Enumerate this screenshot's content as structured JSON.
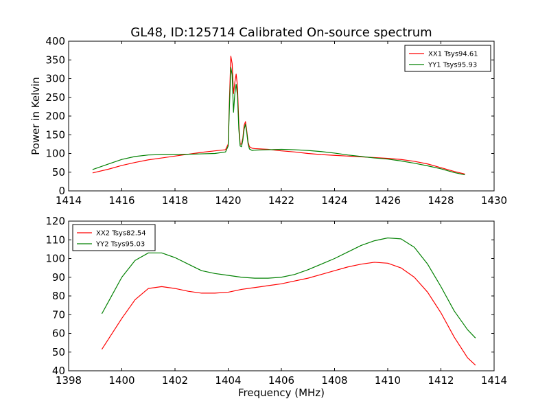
{
  "figure": {
    "title": "GL48, ID:125714 Calibrated On-source spectrum"
  },
  "chart_data": [
    {
      "type": "line",
      "panel": "top",
      "title": "GL48, ID:125714 Calibrated On-source spectrum",
      "xlabel": "",
      "ylabel": "Power in Kelvin",
      "xlim": [
        1414,
        1430
      ],
      "ylim": [
        0,
        400
      ],
      "xticks": [
        1414,
        1416,
        1418,
        1420,
        1422,
        1424,
        1426,
        1428,
        1430
      ],
      "yticks": [
        0,
        50,
        100,
        150,
        200,
        250,
        300,
        350,
        400
      ],
      "grid": false,
      "legend_position": "top-right",
      "series": [
        {
          "name": "XX1 Tsys94.61",
          "color": "#ff0000",
          "x": [
            1414.9,
            1415.5,
            1416.0,
            1416.5,
            1417.0,
            1417.5,
            1418.0,
            1418.5,
            1419.0,
            1419.5,
            1419.9,
            1420.0,
            1420.05,
            1420.1,
            1420.15,
            1420.2,
            1420.25,
            1420.3,
            1420.35,
            1420.4,
            1420.45,
            1420.5,
            1420.55,
            1420.6,
            1420.65,
            1420.7,
            1420.75,
            1420.8,
            1420.9,
            1421.0,
            1421.5,
            1422.0,
            1422.5,
            1423.0,
            1423.5,
            1424.0,
            1424.5,
            1425.0,
            1425.5,
            1426.0,
            1426.5,
            1427.0,
            1427.5,
            1428.0,
            1428.5,
            1428.9
          ],
          "y": [
            48,
            58,
            68,
            76,
            83,
            88,
            93,
            98,
            103,
            107,
            110,
            125,
            250,
            360,
            340,
            260,
            290,
            312,
            280,
            180,
            125,
            125,
            140,
            175,
            185,
            160,
            130,
            118,
            114,
            113,
            111,
            107,
            104,
            100,
            97,
            95,
            93,
            91,
            89,
            87,
            84,
            79,
            72,
            62,
            52,
            45
          ]
        },
        {
          "name": "YY1 Tsys95.93",
          "color": "#008000",
          "x": [
            1414.9,
            1415.5,
            1416.0,
            1416.5,
            1417.0,
            1417.5,
            1418.0,
            1418.5,
            1419.0,
            1419.5,
            1419.9,
            1420.0,
            1420.05,
            1420.1,
            1420.15,
            1420.2,
            1420.25,
            1420.3,
            1420.35,
            1420.4,
            1420.45,
            1420.5,
            1420.55,
            1420.6,
            1420.65,
            1420.7,
            1420.75,
            1420.8,
            1420.9,
            1421.0,
            1421.5,
            1422.0,
            1422.5,
            1423.0,
            1423.5,
            1424.0,
            1424.5,
            1425.0,
            1425.5,
            1426.0,
            1426.5,
            1427.0,
            1427.5,
            1428.0,
            1428.5,
            1428.9
          ],
          "y": [
            57,
            72,
            84,
            92,
            96,
            97,
            97,
            98,
            99,
            100,
            104,
            120,
            230,
            330,
            310,
            210,
            260,
            285,
            255,
            165,
            120,
            118,
            135,
            165,
            178,
            155,
            125,
            112,
            108,
            109,
            110,
            111,
            110,
            108,
            105,
            101,
            96,
            92,
            88,
            85,
            80,
            74,
            67,
            59,
            49,
            43
          ]
        }
      ]
    },
    {
      "type": "line",
      "panel": "bottom",
      "title": "",
      "xlabel": "Frequency (MHz)",
      "ylabel": "",
      "xlim": [
        1398,
        1414
      ],
      "ylim": [
        40,
        120
      ],
      "xticks": [
        1398,
        1400,
        1402,
        1404,
        1406,
        1408,
        1410,
        1412,
        1414
      ],
      "yticks": [
        40,
        50,
        60,
        70,
        80,
        90,
        100,
        110,
        120
      ],
      "grid": false,
      "legend_position": "top-left",
      "series": [
        {
          "name": "XX2 Tsys82.54",
          "color": "#ff0000",
          "x": [
            1399.25,
            1399.5,
            1400.0,
            1400.5,
            1401.0,
            1401.5,
            1402.0,
            1402.5,
            1403.0,
            1403.5,
            1404.0,
            1404.5,
            1405.0,
            1405.5,
            1406.0,
            1406.5,
            1407.0,
            1407.5,
            1408.0,
            1408.5,
            1409.0,
            1409.5,
            1410.0,
            1410.5,
            1411.0,
            1411.5,
            1412.0,
            1412.5,
            1413.0,
            1413.3
          ],
          "y": [
            51.5,
            57,
            68,
            78,
            84,
            85,
            84,
            82.5,
            81.5,
            81.5,
            82,
            83.5,
            84.5,
            85.5,
            86.5,
            88,
            89.5,
            91.5,
            93.5,
            95.5,
            97,
            98,
            97.5,
            95,
            90,
            82,
            71,
            58,
            47,
            43
          ]
        },
        {
          "name": "YY2 Tsys95.03",
          "color": "#008000",
          "x": [
            1399.25,
            1399.5,
            1400.0,
            1400.5,
            1401.0,
            1401.5,
            1402.0,
            1402.5,
            1403.0,
            1403.5,
            1404.0,
            1404.5,
            1405.0,
            1405.5,
            1406.0,
            1406.5,
            1407.0,
            1407.5,
            1408.0,
            1408.5,
            1409.0,
            1409.5,
            1410.0,
            1410.5,
            1411.0,
            1411.5,
            1412.0,
            1412.5,
            1413.0,
            1413.3
          ],
          "y": [
            70.5,
            77,
            90,
            99,
            103,
            103,
            100.5,
            97,
            93.5,
            92,
            91,
            90,
            89.5,
            89.5,
            90,
            91.5,
            94,
            97,
            100,
            103.5,
            107,
            109.5,
            111,
            110.5,
            106,
            97,
            85,
            72,
            62,
            57.5
          ]
        }
      ]
    }
  ]
}
